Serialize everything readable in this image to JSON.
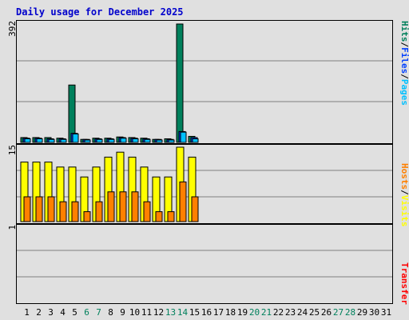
{
  "title": "Daily usage for December 2025",
  "colors": {
    "background": "#e0e0e0",
    "hits": "#00805c",
    "files": "#0040ff",
    "pages": "#00c0ff",
    "visits": "#ffff00",
    "hosts": "#ff8000",
    "kbytes": "#ff0000",
    "title": "#0000cc",
    "weekday_label": "#000000",
    "weekend_label": "#00805c"
  },
  "side_labels": {
    "top": {
      "hits": "Hits",
      "sep1": "/",
      "files": "Files",
      "sep2": "/",
      "pages": "Pages"
    },
    "middle": {
      "hosts": "Hosts",
      "sep": "/",
      "visits": "Visits"
    },
    "bottom": {
      "transfer": "Transfer"
    }
  },
  "chart_data": [
    {
      "type": "bar",
      "panel": "hits-files-pages",
      "y_max_label": "392",
      "ylim": [
        0,
        392
      ],
      "categories": [
        "1",
        "2",
        "3",
        "4",
        "5",
        "6",
        "7",
        "8",
        "9",
        "10",
        "11",
        "12",
        "13",
        "14",
        "15",
        "16",
        "17",
        "18",
        "19",
        "20",
        "21",
        "22",
        "23",
        "24",
        "25",
        "26",
        "27",
        "28",
        "29",
        "30",
        "31"
      ],
      "series": [
        {
          "name": "Hits",
          "values": [
            16,
            16,
            16,
            14,
            190,
            10,
            14,
            14,
            18,
            16,
            14,
            10,
            12,
            392,
            20,
            0,
            0,
            0,
            0,
            0,
            0,
            0,
            0,
            0,
            0,
            0,
            0,
            0,
            0,
            0,
            0
          ]
        },
        {
          "name": "Files",
          "values": [
            14,
            14,
            12,
            12,
            30,
            10,
            12,
            12,
            16,
            14,
            12,
            10,
            10,
            36,
            16,
            0,
            0,
            0,
            0,
            0,
            0,
            0,
            0,
            0,
            0,
            0,
            0,
            0,
            0,
            0,
            0
          ]
        },
        {
          "name": "Pages",
          "values": [
            12,
            12,
            10,
            10,
            28,
            8,
            10,
            10,
            14,
            12,
            10,
            8,
            8,
            34,
            12,
            0,
            0,
            0,
            0,
            0,
            0,
            0,
            0,
            0,
            0,
            0,
            0,
            0,
            0,
            0,
            0
          ]
        }
      ]
    },
    {
      "type": "bar",
      "panel": "hosts-visits",
      "y_max_label": "15",
      "ylim": [
        0,
        15
      ],
      "categories": [
        "1",
        "2",
        "3",
        "4",
        "5",
        "6",
        "7",
        "8",
        "9",
        "10",
        "11",
        "12",
        "13",
        "14",
        "15",
        "16",
        "17",
        "18",
        "19",
        "20",
        "21",
        "22",
        "23",
        "24",
        "25",
        "26",
        "27",
        "28",
        "29",
        "30",
        "31"
      ],
      "series": [
        {
          "name": "Visits",
          "values": [
            12,
            12,
            12,
            11,
            11,
            9,
            11,
            13,
            14,
            13,
            11,
            9,
            9,
            15,
            13,
            0,
            0,
            0,
            0,
            0,
            0,
            0,
            0,
            0,
            0,
            0,
            0,
            0,
            0,
            0,
            0
          ]
        },
        {
          "name": "Hosts",
          "values": [
            5,
            5,
            5,
            4,
            4,
            2,
            4,
            6,
            6,
            6,
            4,
            2,
            2,
            8,
            5,
            0,
            0,
            0,
            0,
            0,
            0,
            0,
            0,
            0,
            0,
            0,
            0,
            0,
            0,
            0,
            0
          ]
        }
      ]
    },
    {
      "type": "bar",
      "panel": "transfer",
      "y_max_label": "1",
      "ylim": [
        0,
        1
      ],
      "categories": [
        "1",
        "2",
        "3",
        "4",
        "5",
        "6",
        "7",
        "8",
        "9",
        "10",
        "11",
        "12",
        "13",
        "14",
        "15",
        "16",
        "17",
        "18",
        "19",
        "20",
        "21",
        "22",
        "23",
        "24",
        "25",
        "26",
        "27",
        "28",
        "29",
        "30",
        "31"
      ],
      "series": [
        {
          "name": "Transfer",
          "values": [
            0,
            0,
            0,
            0,
            0,
            0,
            0,
            0,
            0,
            0,
            0,
            0,
            0,
            0,
            0,
            0,
            0,
            0,
            0,
            0,
            0,
            0,
            0,
            0,
            0,
            0,
            0,
            0,
            0,
            0,
            0
          ]
        }
      ]
    }
  ],
  "day_labels": [
    "1",
    "2",
    "3",
    "4",
    "5",
    "6",
    "7",
    "8",
    "9",
    "10",
    "11",
    "12",
    "13",
    "14",
    "15",
    "16",
    "17",
    "18",
    "19",
    "20",
    "21",
    "22",
    "23",
    "24",
    "25",
    "26",
    "27",
    "28",
    "29",
    "30",
    "31"
  ],
  "weekend_days": [
    6,
    7,
    13,
    14,
    20,
    21,
    27,
    28
  ]
}
